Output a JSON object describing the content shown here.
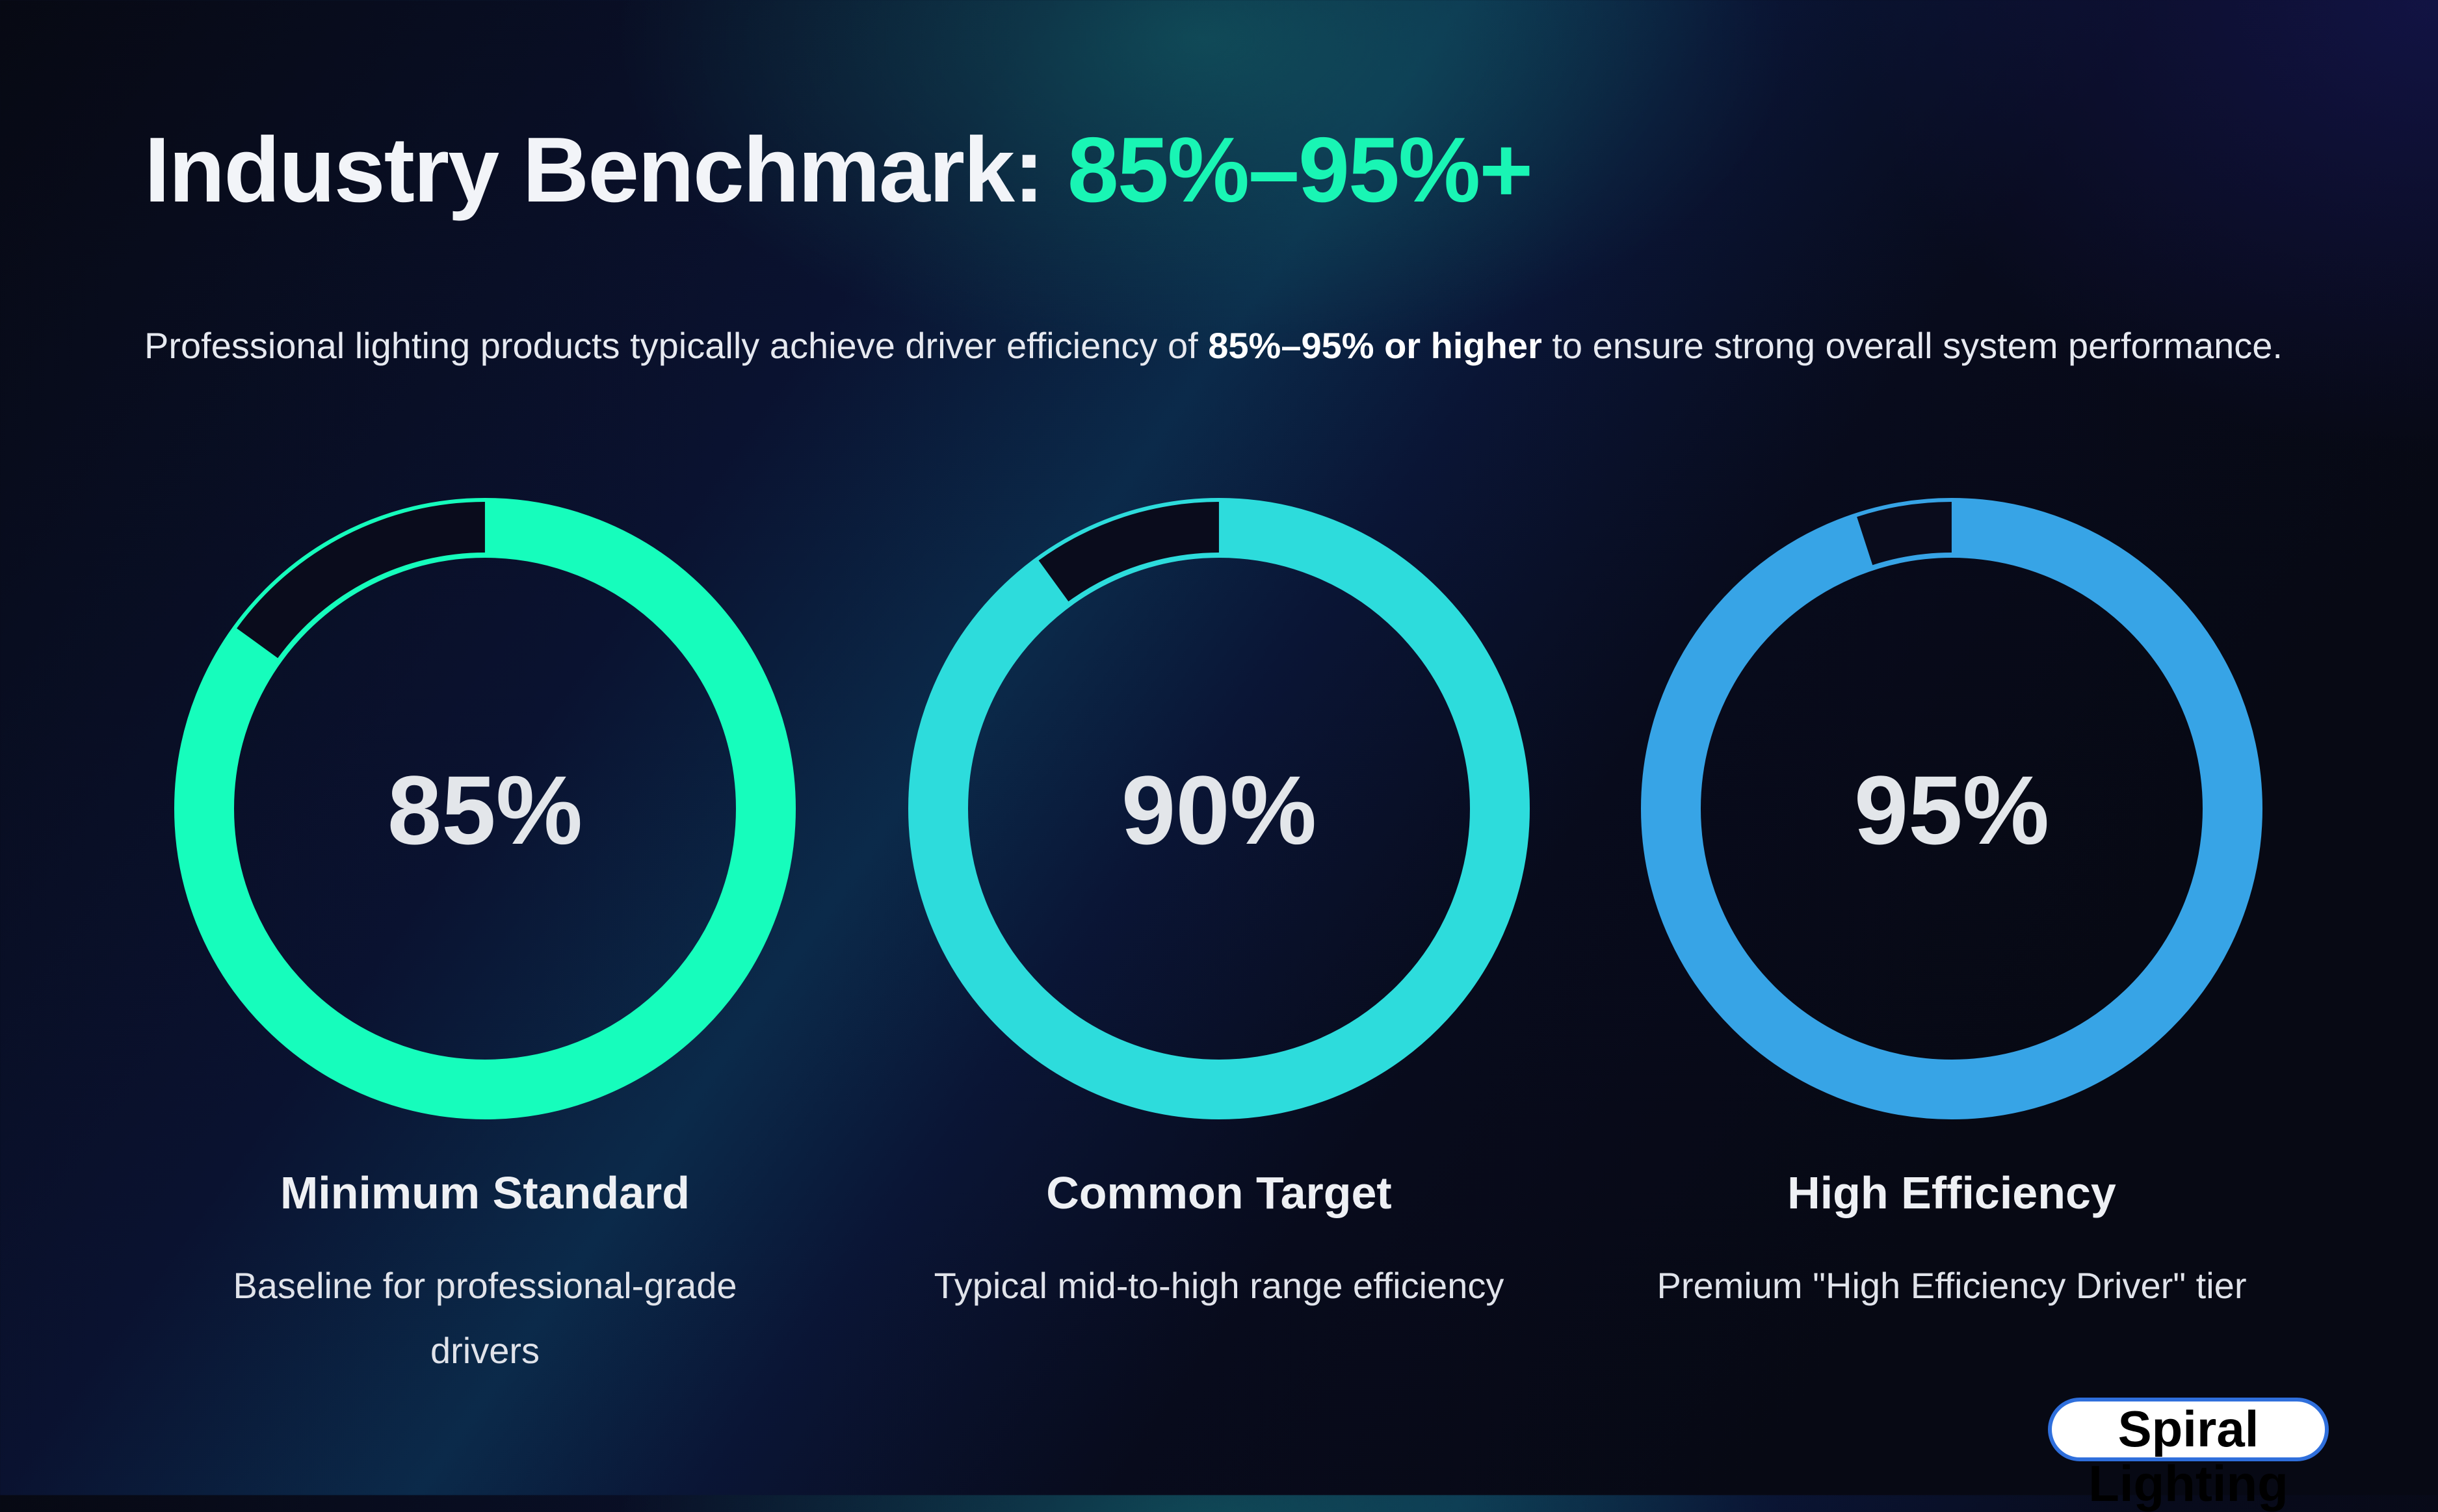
{
  "title": {
    "prefix": "Industry Benchmark:",
    "accent": "85%–95%+"
  },
  "intro": {
    "before": "Professional lighting products typically achieve driver efficiency of ",
    "bold": "85%–95% or higher",
    "after": " to ensure strong overall system performance."
  },
  "colors": {
    "accent": "#19f5b4",
    "ring1": "#16fdbc",
    "ring2": "#2ddcdc",
    "ring3": "#37a4e6",
    "remainder": "#0a0c1c"
  },
  "cards": [
    {
      "value": 85,
      "label": "85%",
      "title": "Minimum Standard",
      "desc": "Baseline for professional-grade drivers"
    },
    {
      "value": 90,
      "label": "90%",
      "title": "Common Target",
      "desc": "Typical mid-to-high range efficiency"
    },
    {
      "value": 95,
      "label": "95%",
      "title": "High Efficiency",
      "desc": "Premium \"High Efficiency Driver\" tier"
    }
  ],
  "logo": "Spiral Lighting"
}
